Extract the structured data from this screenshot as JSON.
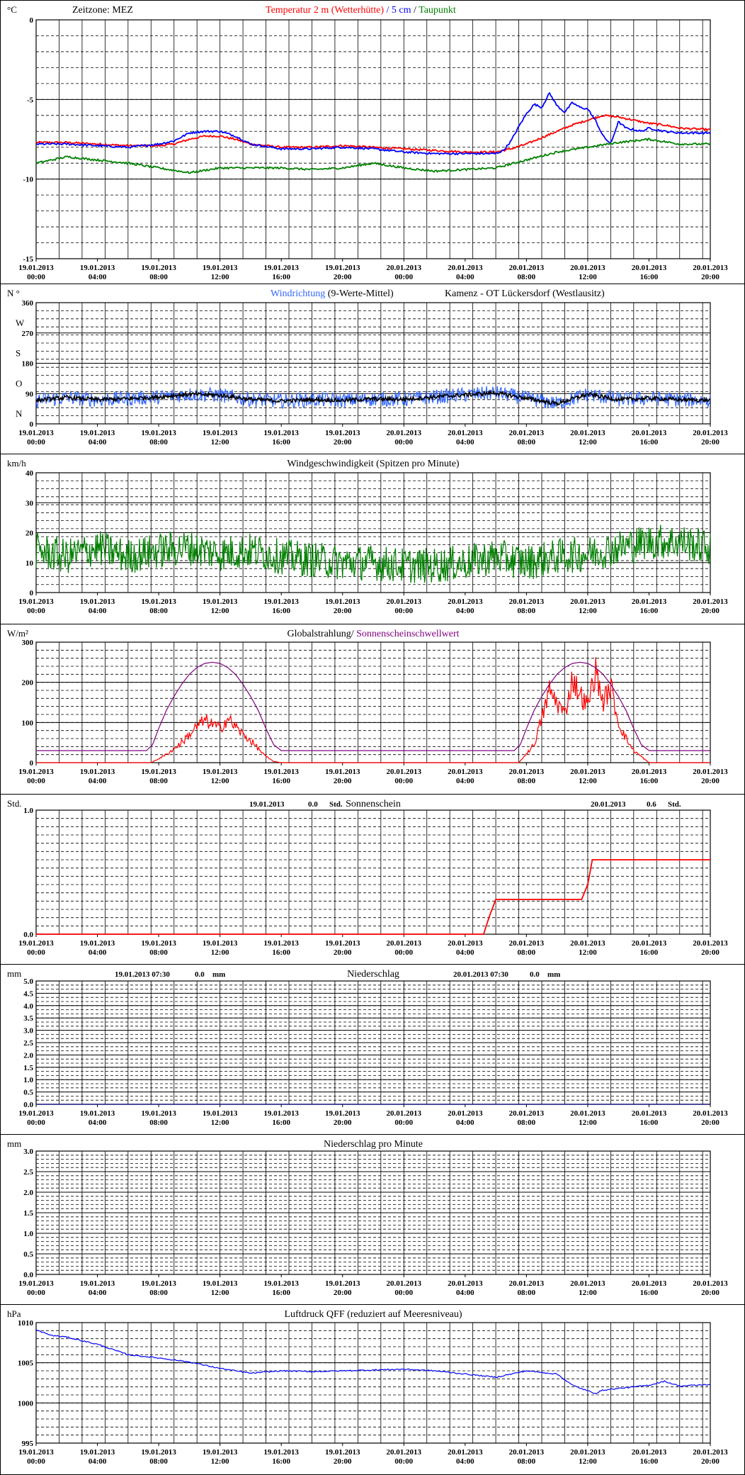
{
  "x_tick_labels": [
    [
      "19.01.2013",
      "00:00"
    ],
    [
      "19.01.2013",
      "04:00"
    ],
    [
      "19.01.2013",
      "08:00"
    ],
    [
      "19.01.2013",
      "12:00"
    ],
    [
      "19.01.2013",
      "16:00"
    ],
    [
      "19.01.2013",
      "20:00"
    ],
    [
      "20.01.2013",
      "00:00"
    ],
    [
      "20.01.2013",
      "04:00"
    ],
    [
      "20.01.2013",
      "08:00"
    ],
    [
      "20.01.2013",
      "12:00"
    ],
    [
      "20.01.2013",
      "16:00"
    ],
    [
      "20.01.2013",
      "20:00"
    ]
  ],
  "colors": {
    "temp_2m": "#ff0000",
    "temp_5cm": "#0000ff",
    "dewpoint": "#008000",
    "wind_dir_raw": "#3366ff",
    "wind_dir_mean": "#000000",
    "wind_speed": "#008000",
    "radiation": "#ff0000",
    "sun_threshold": "#800080",
    "sunshine": "#ff0000",
    "precip": "#000080",
    "pressure": "#0000ff"
  },
  "chart_data": [
    {
      "id": "temperature",
      "type": "line",
      "unit_label": "°C",
      "title_parts": [
        {
          "text": "Zeitzone: MEZ",
          "color": "#000000"
        },
        {
          "text": "Temperatur 2 m (Wetterhütte)",
          "color": "#ff0000"
        },
        {
          "text": "/",
          "color": "#0000ff"
        },
        {
          "text": "5 cm",
          "color": "#0000ff"
        },
        {
          "text": "/",
          "color": "#000000"
        },
        {
          "text": "Taupunkt",
          "color": "#008000"
        }
      ],
      "ylim": [
        -15,
        0
      ],
      "y_tick_labels": [
        "0",
        "-5",
        "-10",
        "-15"
      ],
      "y_tick_values": [
        0,
        -5,
        -10,
        -15
      ],
      "x_hours": [
        0,
        44
      ],
      "series": [
        {
          "name": "Temperatur 2 m (Wetterhütte)",
          "color_key": "temp_2m",
          "x": [
            0,
            2,
            4,
            6,
            8,
            9,
            10,
            11,
            12,
            13,
            14,
            16,
            18,
            20,
            22,
            24,
            26,
            28,
            30,
            31,
            32,
            33,
            34,
            35,
            36,
            37,
            38,
            39,
            40,
            41,
            42,
            44
          ],
          "y": [
            -7.7,
            -7.7,
            -7.8,
            -7.9,
            -7.9,
            -7.8,
            -7.5,
            -7.3,
            -7.3,
            -7.5,
            -7.8,
            -8.0,
            -8.0,
            -7.9,
            -8.0,
            -8.1,
            -8.2,
            -8.3,
            -8.3,
            -8.1,
            -7.8,
            -7.4,
            -7.0,
            -6.6,
            -6.3,
            -6.0,
            -6.1,
            -6.3,
            -6.5,
            -6.6,
            -6.8,
            -6.9
          ]
        },
        {
          "name": "5 cm",
          "color_key": "temp_5cm",
          "x": [
            0,
            2,
            4,
            6,
            8,
            9,
            10,
            11,
            12,
            13,
            14,
            16,
            18,
            20,
            22,
            24,
            26,
            28,
            30,
            30.5,
            31,
            31.5,
            32,
            32.5,
            33,
            33.5,
            34,
            34.5,
            35,
            35.5,
            36,
            36.5,
            37,
            37.5,
            38,
            38.5,
            39,
            39.5,
            40,
            41,
            42,
            44
          ],
          "y": [
            -7.8,
            -7.8,
            -7.9,
            -8.0,
            -7.8,
            -7.6,
            -7.1,
            -7.0,
            -7.0,
            -7.3,
            -7.8,
            -8.1,
            -8.1,
            -8.0,
            -8.1,
            -8.3,
            -8.4,
            -8.4,
            -8.4,
            -8.2,
            -7.6,
            -6.7,
            -5.9,
            -5.3,
            -5.5,
            -4.6,
            -5.4,
            -5.8,
            -5.2,
            -5.5,
            -5.6,
            -6.3,
            -7.3,
            -7.8,
            -6.4,
            -6.8,
            -6.9,
            -7.0,
            -6.8,
            -7.0,
            -7.1,
            -7.1
          ]
        },
        {
          "name": "Taupunkt",
          "color_key": "dewpoint",
          "x": [
            0,
            2,
            4,
            6,
            8,
            10,
            12,
            14,
            16,
            18,
            20,
            22,
            24,
            26,
            28,
            30,
            32,
            34,
            36,
            38,
            40,
            42,
            44
          ],
          "y": [
            -9.0,
            -8.6,
            -8.8,
            -9.0,
            -9.3,
            -9.6,
            -9.3,
            -9.3,
            -9.3,
            -9.4,
            -9.3,
            -9.0,
            -9.3,
            -9.5,
            -9.4,
            -9.3,
            -8.8,
            -8.3,
            -8.0,
            -7.7,
            -7.5,
            -7.8,
            -7.8
          ]
        }
      ]
    },
    {
      "id": "wind_direction",
      "type": "line",
      "unit_label": "N °",
      "title_parts": [
        {
          "text": "Windrichtung",
          "color": "#3366ff"
        },
        {
          "text": "(9-Werte-Mittel)",
          "color": "#000000"
        },
        {
          "text": "Kamenz - OT Lückersdorf (Westlausitz)",
          "color": "#000000"
        }
      ],
      "ylim": [
        0,
        360
      ],
      "y_tick_labels": [
        "360",
        "270",
        "180",
        "90",
        "0"
      ],
      "y_tick_values": [
        360,
        270,
        180,
        90,
        0
      ],
      "direction_letters": [
        "W",
        "S",
        "O",
        "N"
      ],
      "direction_values": [
        270,
        180,
        90,
        0
      ],
      "x_hours": [
        0,
        44
      ],
      "series": [
        {
          "name": "Windrichtung",
          "color_key": "wind_dir_raw",
          "noise": 22,
          "x": [
            0,
            2,
            4,
            6,
            8,
            10,
            12,
            14,
            16,
            18,
            20,
            22,
            24,
            26,
            28,
            30,
            32,
            34,
            36,
            38,
            40,
            42,
            44
          ],
          "y": [
            70,
            78,
            72,
            75,
            80,
            88,
            85,
            73,
            68,
            72,
            70,
            74,
            73,
            80,
            86,
            92,
            76,
            60,
            88,
            72,
            76,
            72,
            70
          ]
        },
        {
          "name": "9-Werte-Mittel",
          "color_key": "wind_dir_mean",
          "noise": 6,
          "x": [
            0,
            2,
            4,
            6,
            8,
            10,
            12,
            14,
            16,
            18,
            20,
            22,
            24,
            26,
            28,
            30,
            32,
            34,
            36,
            38,
            40,
            42,
            44
          ],
          "y": [
            70,
            78,
            72,
            75,
            80,
            88,
            85,
            73,
            68,
            72,
            70,
            74,
            73,
            80,
            86,
            92,
            76,
            60,
            88,
            72,
            76,
            72,
            70
          ]
        }
      ]
    },
    {
      "id": "wind_speed",
      "type": "line",
      "unit_label": "km/h",
      "title_parts": [
        {
          "text": "Windgeschwindigkeit (Spitzen pro Minute)",
          "color": "#000000"
        }
      ],
      "ylim": [
        0,
        40
      ],
      "y_tick_labels": [
        "40",
        "30",
        "20",
        "10",
        "0"
      ],
      "y_tick_values": [
        40,
        30,
        20,
        10,
        0
      ],
      "x_hours": [
        0,
        44
      ],
      "series": [
        {
          "name": "Windgeschwindigkeit",
          "color_key": "wind_speed",
          "noise": 6,
          "x": [
            0,
            2,
            4,
            6,
            8,
            10,
            12,
            14,
            16,
            18,
            20,
            22,
            24,
            26,
            28,
            30,
            32,
            34,
            36,
            38,
            40,
            42,
            44
          ],
          "y": [
            14,
            12,
            15,
            12,
            14,
            15,
            13,
            14,
            12,
            11,
            10,
            10,
            9,
            9,
            10,
            12,
            10,
            12,
            13,
            15,
            17,
            17,
            15
          ]
        }
      ]
    },
    {
      "id": "radiation",
      "type": "line",
      "unit_label": "W/m²",
      "title_parts": [
        {
          "text": "Globalstrahlung/",
          "color": "#000000"
        },
        {
          "text": "Sonnenscheinschwellwert",
          "color": "#800080"
        }
      ],
      "ylim": [
        0,
        300
      ],
      "y_tick_labels": [
        "300",
        "200",
        "100",
        "0"
      ],
      "y_tick_values": [
        300,
        200,
        100,
        0
      ],
      "x_hours": [
        0,
        44
      ],
      "series": [
        {
          "name": "Globalstrahlung",
          "color_key": "radiation",
          "x": [
            0,
            7.5,
            8.5,
            9.5,
            10.5,
            11,
            11.5,
            12,
            12.5,
            13,
            13.5,
            14,
            14.5,
            15,
            15.5,
            16,
            31.5,
            32.5,
            33,
            33.5,
            34,
            34.5,
            35,
            35.5,
            36,
            36.5,
            37,
            37.5,
            38,
            38.5,
            39,
            40,
            44
          ],
          "y": [
            0,
            0,
            20,
            50,
            90,
            105,
            95,
            85,
            110,
            90,
            70,
            55,
            35,
            15,
            3,
            0,
            0,
            45,
            110,
            180,
            150,
            120,
            210,
            170,
            140,
            230,
            150,
            190,
            100,
            60,
            30,
            0,
            0
          ]
        },
        {
          "name": "Sonnenscheinschwellwert",
          "color_key": "sun_threshold",
          "x": [
            0,
            7.2,
            7.6,
            8,
            8.5,
            9,
            9.5,
            10,
            10.5,
            11,
            11.5,
            12,
            12.5,
            13,
            13.5,
            14,
            14.5,
            15,
            15.5,
            16,
            16.4,
            31.2,
            31.6,
            32,
            32.5,
            33,
            33.5,
            34,
            34.5,
            35,
            35.5,
            36,
            36.5,
            37,
            37.5,
            38,
            38.5,
            39,
            39.5,
            40,
            40.4,
            44
          ],
          "y": [
            30,
            30,
            45,
            85,
            130,
            165,
            195,
            220,
            237,
            247,
            250,
            247,
            237,
            220,
            195,
            165,
            130,
            85,
            45,
            30,
            30,
            30,
            45,
            85,
            130,
            165,
            195,
            220,
            237,
            247,
            250,
            247,
            237,
            220,
            195,
            165,
            130,
            85,
            45,
            30,
            30,
            30
          ]
        }
      ]
    },
    {
      "id": "sunshine",
      "type": "line",
      "unit_label": "Std.",
      "title_parts": [
        {
          "text": "Sonnenschein",
          "color": "#000000"
        }
      ],
      "annotations": [
        {
          "date": "19.01.2013",
          "value": "0.0",
          "unit": "Std."
        },
        {
          "date": "20.01.2013",
          "value": "0.6",
          "unit": "Std."
        }
      ],
      "ylim": [
        0,
        1
      ],
      "y_tick_labels": [
        "1.0",
        "0.0"
      ],
      "y_tick_values": [
        1,
        0
      ],
      "x_hours": [
        0,
        44
      ],
      "series": [
        {
          "name": "Sonnenschein",
          "color_key": "sunshine",
          "x": [
            0,
            29.2,
            29.6,
            30,
            35.6,
            36,
            36.3,
            44
          ],
          "y": [
            0,
            0,
            0.15,
            0.28,
            0.28,
            0.4,
            0.6,
            0.6
          ]
        }
      ]
    },
    {
      "id": "precip",
      "type": "line",
      "unit_label": "mm",
      "title_parts": [
        {
          "text": "Niederschlag",
          "color": "#000000"
        }
      ],
      "annotations": [
        {
          "date": "19.01.2013 07:30",
          "value": "0.0",
          "unit": "mm"
        },
        {
          "date": "20.01.2013 07:30",
          "value": "0.0",
          "unit": "mm"
        }
      ],
      "ylim": [
        0,
        5
      ],
      "y_tick_labels": [
        "5.0",
        "4.5",
        "4.0",
        "3.5",
        "3.0",
        "2.5",
        "2.0",
        "1.5",
        "1.0",
        "0.5",
        "0.0"
      ],
      "y_tick_values": [
        5,
        4.5,
        4,
        3.5,
        3,
        2.5,
        2,
        1.5,
        1,
        0.5,
        0
      ],
      "x_hours": [
        0,
        44
      ],
      "series": [
        {
          "name": "Niederschlag",
          "color_key": "precip",
          "x": [
            0,
            44
          ],
          "y": [
            0,
            0
          ]
        }
      ]
    },
    {
      "id": "precip_min",
      "type": "line",
      "unit_label": "mm",
      "title_parts": [
        {
          "text": "Niederschlag pro Minute",
          "color": "#000000"
        }
      ],
      "ylim": [
        0,
        3
      ],
      "y_tick_labels": [
        "3.0",
        "2.5",
        "2.0",
        "1.5",
        "1.0",
        "0.5",
        "0.0"
      ],
      "y_tick_values": [
        3,
        2.5,
        2,
        1.5,
        1,
        0.5,
        0
      ],
      "x_hours": [
        0,
        44
      ],
      "series": []
    },
    {
      "id": "pressure",
      "type": "line",
      "unit_label": "hPa",
      "title_parts": [
        {
          "text": "Luftdruck QFF (reduziert auf Meeresniveau)",
          "color": "#000000"
        }
      ],
      "ylim": [
        995,
        1010
      ],
      "y_tick_labels": [
        "1010",
        "1005",
        "1000",
        "995"
      ],
      "y_tick_values": [
        1010,
        1005,
        1000,
        995
      ],
      "x_hours": [
        0,
        44
      ],
      "series": [
        {
          "name": "Luftdruck QFF",
          "color_key": "pressure",
          "x": [
            0,
            1,
            2,
            4,
            6,
            8,
            10,
            12,
            14,
            16,
            18,
            20,
            22,
            24,
            26,
            28,
            30,
            32,
            34,
            35,
            36,
            36.5,
            37,
            38,
            40,
            41,
            42,
            44
          ],
          "y": [
            1009.1,
            1008.4,
            1008.2,
            1007.3,
            1006.0,
            1005.6,
            1005.1,
            1004.3,
            1003.7,
            1004.0,
            1003.9,
            1004.0,
            1004.1,
            1004.2,
            1004.0,
            1003.6,
            1003.2,
            1004.0,
            1003.6,
            1002.2,
            1001.5,
            1001.2,
            1001.6,
            1001.8,
            1002.2,
            1002.7,
            1002.1,
            1002.3
          ]
        }
      ]
    }
  ]
}
